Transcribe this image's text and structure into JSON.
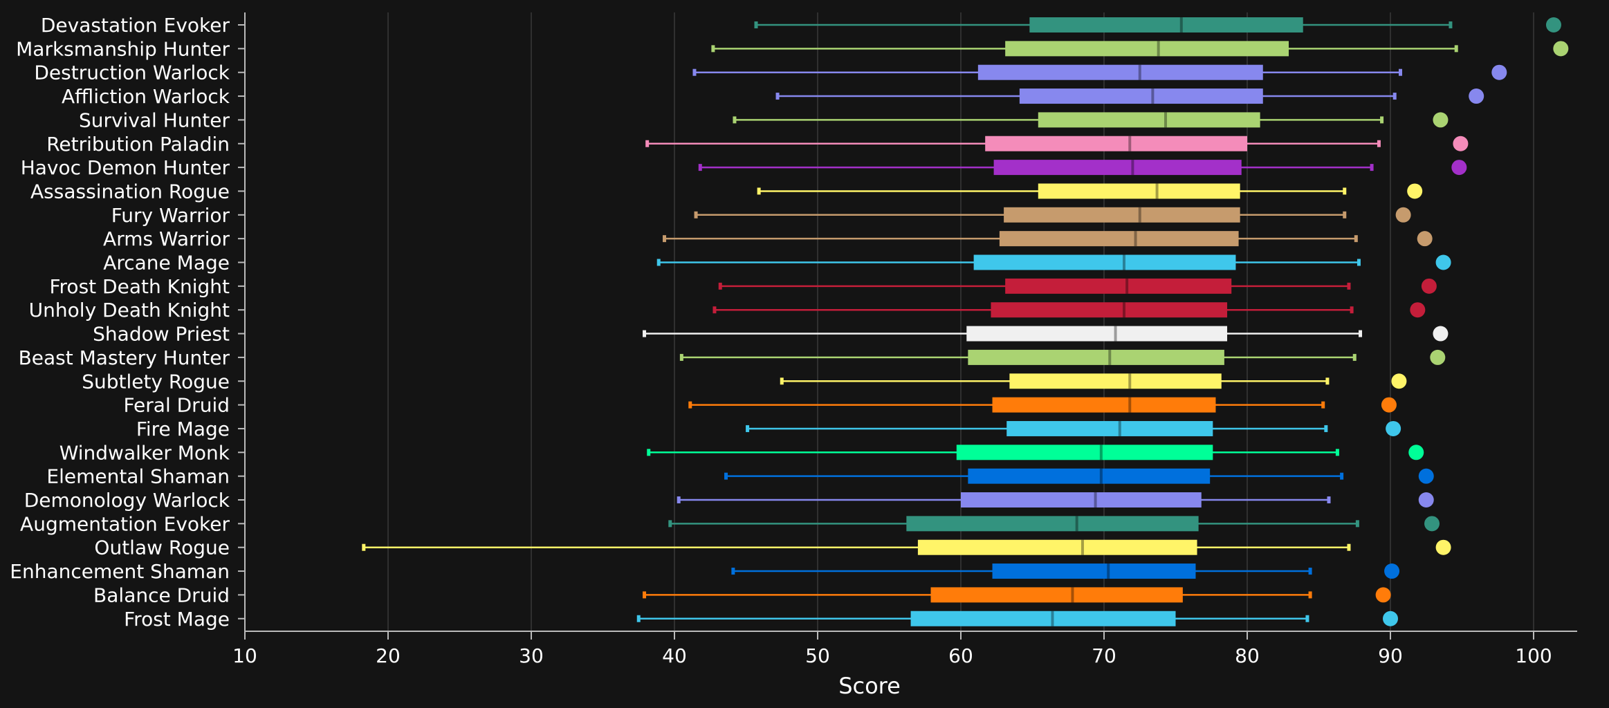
{
  "chart_data": {
    "type": "boxplot",
    "orientation": "horizontal",
    "title": "",
    "xlabel": "Score",
    "ylabel": "",
    "xlim": [
      10,
      103
    ],
    "xticks": [
      10,
      20,
      30,
      40,
      50,
      60,
      70,
      80,
      90,
      100
    ],
    "grid": "vertical",
    "legend": "none",
    "background": "#141414",
    "series": [
      {
        "category": "Devastation Evoker",
        "color": "#33937f",
        "min": 45.7,
        "q1": 64.8,
        "median": 75.4,
        "q3": 83.9,
        "max": 94.2,
        "outlier": 101.4
      },
      {
        "category": "Marksmanship Hunter",
        "color": "#aad372",
        "min": 42.7,
        "q1": 63.1,
        "median": 73.8,
        "q3": 82.9,
        "max": 94.6,
        "outlier": 101.9
      },
      {
        "category": "Destruction Warlock",
        "color": "#8788ee",
        "min": 41.4,
        "q1": 61.2,
        "median": 72.5,
        "q3": 81.1,
        "max": 90.7,
        "outlier": 97.6
      },
      {
        "category": "Affliction Warlock",
        "color": "#8788ee",
        "min": 47.2,
        "q1": 64.1,
        "median": 73.4,
        "q3": 81.1,
        "max": 90.3,
        "outlier": 96.0
      },
      {
        "category": "Survival Hunter",
        "color": "#aad372",
        "min": 44.2,
        "q1": 65.4,
        "median": 74.3,
        "q3": 80.9,
        "max": 89.4,
        "outlier": 93.5
      },
      {
        "category": "Retribution Paladin",
        "color": "#f48cba",
        "min": 38.1,
        "q1": 61.7,
        "median": 71.8,
        "q3": 80.0,
        "max": 89.2,
        "outlier": 94.9
      },
      {
        "category": "Havoc Demon Hunter",
        "color": "#a330c9",
        "min": 41.8,
        "q1": 62.3,
        "median": 72.0,
        "q3": 79.6,
        "max": 88.7,
        "outlier": 94.8
      },
      {
        "category": "Assassination Rogue",
        "color": "#fff468",
        "min": 45.9,
        "q1": 65.4,
        "median": 73.7,
        "q3": 79.5,
        "max": 86.8,
        "outlier": 91.7
      },
      {
        "category": "Fury Warrior",
        "color": "#c69b6d",
        "min": 41.5,
        "q1": 63.0,
        "median": 72.5,
        "q3": 79.5,
        "max": 86.8,
        "outlier": 90.9
      },
      {
        "category": "Arms Warrior",
        "color": "#c69b6d",
        "min": 39.3,
        "q1": 62.7,
        "median": 72.2,
        "q3": 79.4,
        "max": 87.6,
        "outlier": 92.4
      },
      {
        "category": "Arcane Mage",
        "color": "#3fc7eb",
        "min": 38.9,
        "q1": 60.9,
        "median": 71.4,
        "q3": 79.2,
        "max": 87.8,
        "outlier": 93.7
      },
      {
        "category": "Frost Death Knight",
        "color": "#c41e3a",
        "min": 43.2,
        "q1": 63.1,
        "median": 71.6,
        "q3": 78.9,
        "max": 87.1,
        "outlier": 92.7
      },
      {
        "category": "Unholy Death Knight",
        "color": "#c41e3a",
        "min": 42.8,
        "q1": 62.1,
        "median": 71.4,
        "q3": 78.6,
        "max": 87.3,
        "outlier": 91.9
      },
      {
        "category": "Shadow Priest",
        "color": "#f0f0f0",
        "min": 37.9,
        "q1": 60.4,
        "median": 70.8,
        "q3": 78.6,
        "max": 87.9,
        "outlier": 93.5
      },
      {
        "category": "Beast Mastery Hunter",
        "color": "#aad372",
        "min": 40.5,
        "q1": 60.5,
        "median": 70.4,
        "q3": 78.4,
        "max": 87.5,
        "outlier": 93.3
      },
      {
        "category": "Subtlety Rogue",
        "color": "#fff468",
        "min": 47.5,
        "q1": 63.4,
        "median": 71.8,
        "q3": 78.2,
        "max": 85.6,
        "outlier": 90.6
      },
      {
        "category": "Feral Druid",
        "color": "#ff7c0a",
        "min": 41.1,
        "q1": 62.2,
        "median": 71.8,
        "q3": 77.8,
        "max": 85.3,
        "outlier": 89.9
      },
      {
        "category": "Fire Mage",
        "color": "#3fc7eb",
        "min": 45.1,
        "q1": 63.2,
        "median": 71.1,
        "q3": 77.6,
        "max": 85.5,
        "outlier": 90.2
      },
      {
        "category": "Windwalker Monk",
        "color": "#00ff98",
        "min": 38.2,
        "q1": 59.7,
        "median": 69.8,
        "q3": 77.6,
        "max": 86.3,
        "outlier": 91.8
      },
      {
        "category": "Elemental Shaman",
        "color": "#0070dd",
        "min": 43.6,
        "q1": 60.5,
        "median": 69.8,
        "q3": 77.4,
        "max": 86.6,
        "outlier": 92.5
      },
      {
        "category": "Demonology Warlock",
        "color": "#8788ee",
        "min": 40.3,
        "q1": 60.0,
        "median": 69.4,
        "q3": 76.8,
        "max": 85.7,
        "outlier": 92.5
      },
      {
        "category": "Augmentation Evoker",
        "color": "#33937f",
        "min": 39.7,
        "q1": 56.2,
        "median": 68.1,
        "q3": 76.6,
        "max": 87.7,
        "outlier": 92.9
      },
      {
        "category": "Outlaw Rogue",
        "color": "#fff468",
        "min": 18.3,
        "q1": 57.0,
        "median": 68.5,
        "q3": 76.5,
        "max": 87.1,
        "outlier": 93.7
      },
      {
        "category": "Enhancement Shaman",
        "color": "#0070dd",
        "min": 44.1,
        "q1": 62.2,
        "median": 70.3,
        "q3": 76.4,
        "max": 84.4,
        "outlier": 90.1
      },
      {
        "category": "Balance Druid",
        "color": "#ff7c0a",
        "min": 37.9,
        "q1": 57.9,
        "median": 67.8,
        "q3": 75.5,
        "max": 84.4,
        "outlier": 89.5
      },
      {
        "category": "Frost Mage",
        "color": "#3fc7eb",
        "min": 37.5,
        "q1": 56.5,
        "median": 66.4,
        "q3": 75.0,
        "max": 84.2,
        "outlier": 90.0
      }
    ]
  }
}
